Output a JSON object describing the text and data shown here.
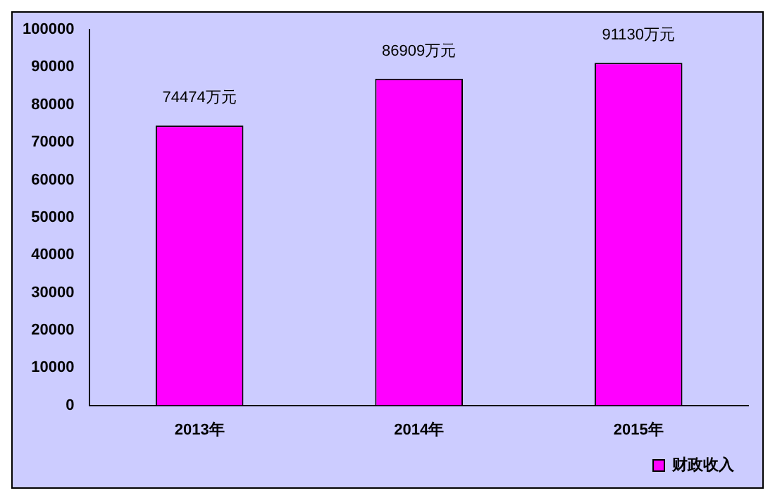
{
  "chart_data": {
    "type": "bar",
    "categories": [
      "2013年",
      "2014年",
      "2015年"
    ],
    "series": [
      {
        "name": "财政收入",
        "color": "#ff00ff",
        "values": [
          74474,
          86909,
          91130
        ],
        "value_labels": [
          "74474万元",
          "86909万元",
          "91130万元"
        ]
      }
    ],
    "ylim": [
      0,
      100000
    ],
    "yticks": [
      0,
      10000,
      20000,
      30000,
      40000,
      50000,
      60000,
      70000,
      80000,
      90000,
      100000
    ],
    "grid": false,
    "legend": "bottom right"
  }
}
